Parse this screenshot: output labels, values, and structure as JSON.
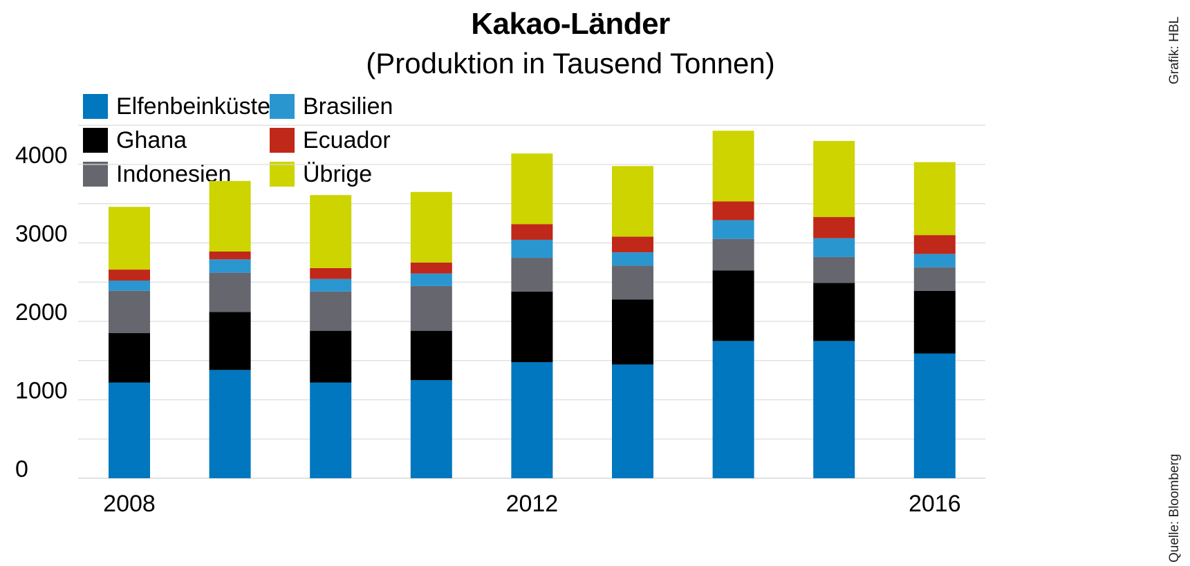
{
  "chart_data": {
    "type": "bar",
    "stacked": true,
    "title": "Kakao-Länder",
    "subtitle": "(Produktion in Tausend Tonnen)",
    "credit": "Grafik: HBL",
    "source": "Quelle: Bloomberg",
    "x": [
      2008,
      2009,
      2010,
      2011,
      2012,
      2013,
      2014,
      2015,
      2016
    ],
    "x_tick_labels": [
      "2008",
      "2012",
      "2016"
    ],
    "y_tick_labels": [
      "0",
      "1000",
      "2000",
      "3000",
      "4000"
    ],
    "y_ticks": [
      0,
      1000,
      2000,
      3000,
      4000
    ],
    "ylim": [
      0,
      4500
    ],
    "grid": true,
    "gridline_values": [
      0,
      500,
      1000,
      1500,
      2000,
      2500,
      3000,
      3500,
      4000,
      4500
    ],
    "legend_position": "top-left",
    "series": [
      {
        "name": "Elfenbeinküste",
        "color": "#0077be",
        "values": [
          1220,
          1380,
          1220,
          1250,
          1480,
          1450,
          1750,
          1750,
          1590
        ]
      },
      {
        "name": "Ghana",
        "color": "#000000",
        "values": [
          630,
          740,
          660,
          630,
          900,
          830,
          900,
          740,
          800
        ]
      },
      {
        "name": "Indonesien",
        "color": "#66666e",
        "values": [
          540,
          500,
          500,
          570,
          430,
          430,
          400,
          330,
          300
        ]
      },
      {
        "name": "Brasilien",
        "color": "#2a96d0",
        "values": [
          130,
          170,
          160,
          160,
          230,
          170,
          240,
          240,
          170
        ]
      },
      {
        "name": "Ecuador",
        "color": "#c0281a",
        "values": [
          140,
          100,
          140,
          140,
          200,
          200,
          240,
          270,
          240
        ]
      },
      {
        "name": "Übrige",
        "color": "#cdd400",
        "values": [
          800,
          900,
          930,
          900,
          900,
          900,
          900,
          970,
          930
        ]
      }
    ]
  }
}
